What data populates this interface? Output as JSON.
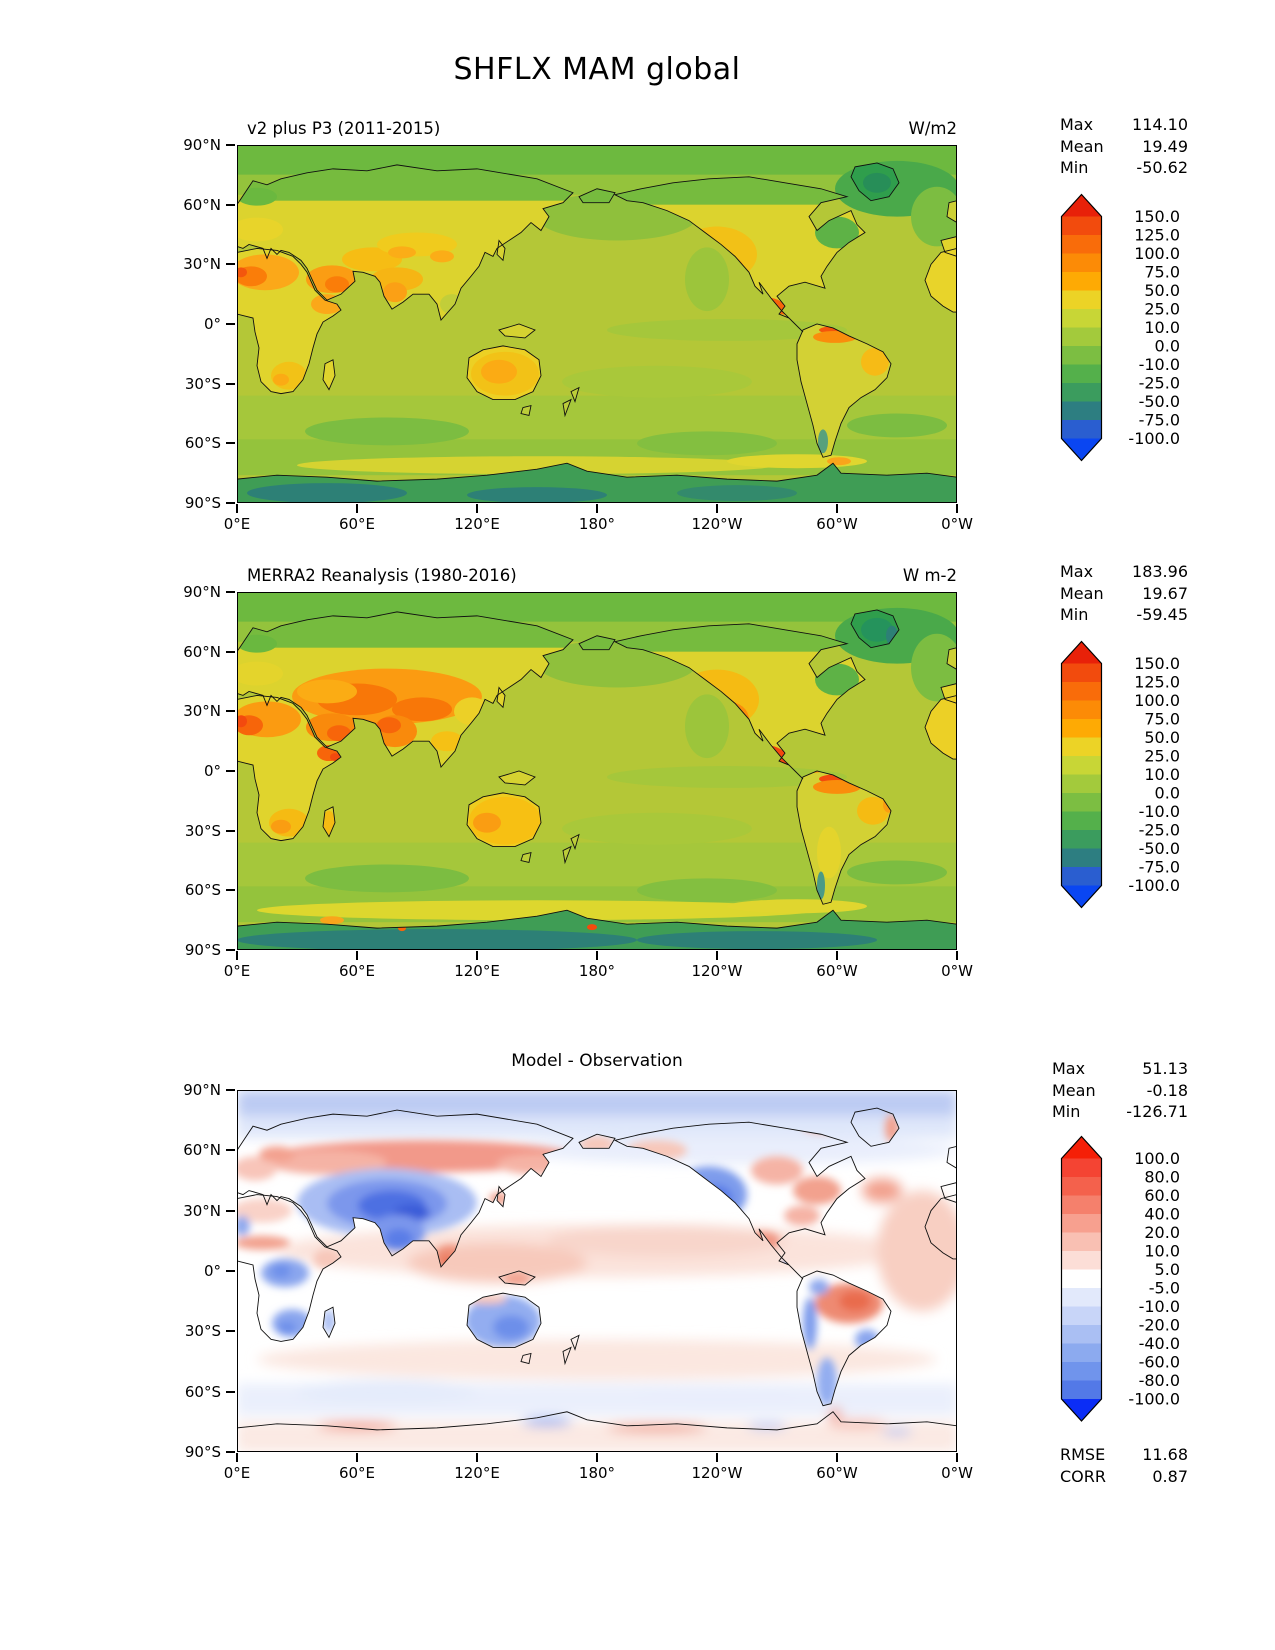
{
  "title": "SHFLX MAM global",
  "panels": [
    {
      "id": "model",
      "title": "v2 plus P3 (2011-2015)",
      "units": "W/m2",
      "stats": [
        {
          "label": "Max",
          "value": "114.10"
        },
        {
          "label": "Mean",
          "value": "19.49"
        },
        {
          "label": "Min",
          "value": "-50.62"
        }
      ],
      "yticks": [
        "90°N",
        "60°N",
        "30°N",
        "0°",
        "30°S",
        "60°S",
        "90°S"
      ],
      "xticks": [
        "0°E",
        "60°E",
        "120°E",
        "180°",
        "120°W",
        "60°W",
        "0°W"
      ],
      "colorbar": {
        "ticks": [
          "150.0",
          "125.0",
          "100.0",
          "75.0",
          "50.0",
          "25.0",
          "10.0",
          "0.0",
          "-10.0",
          "-25.0",
          "-50.0",
          "-75.0",
          "-100.0"
        ],
        "segments": [
          "#f24b0d",
          "#f96c0a",
          "#fc8b06",
          "#feaa04",
          "#ecd326",
          "#c8d636",
          "#a3ca3c",
          "#7cbe42",
          "#54b04b",
          "#3b9c5e",
          "#2d7e81",
          "#2a5ed0"
        ],
        "arrow_top": "#e82109",
        "arrow_bottom": "#0a46f2"
      }
    },
    {
      "id": "observation",
      "title": "MERRA2 Reanalysis (1980-2016)",
      "units": "W m-2",
      "stats": [
        {
          "label": "Max",
          "value": "183.96"
        },
        {
          "label": "Mean",
          "value": "19.67"
        },
        {
          "label": "Min",
          "value": "-59.45"
        }
      ],
      "yticks": [
        "90°N",
        "60°N",
        "30°N",
        "0°",
        "30°S",
        "60°S",
        "90°S"
      ],
      "xticks": [
        "0°E",
        "60°E",
        "120°E",
        "180°",
        "120°W",
        "60°W",
        "0°W"
      ],
      "colorbar": {
        "ticks": [
          "150.0",
          "125.0",
          "100.0",
          "75.0",
          "50.0",
          "25.0",
          "10.0",
          "0.0",
          "-10.0",
          "-25.0",
          "-50.0",
          "-75.0",
          "-100.0"
        ],
        "segments": [
          "#f24b0d",
          "#f96c0a",
          "#fc8b06",
          "#feaa04",
          "#ecd326",
          "#c8d636",
          "#a3ca3c",
          "#7cbe42",
          "#54b04b",
          "#3b9c5e",
          "#2d7e81",
          "#2a5ed0"
        ],
        "arrow_top": "#e82109",
        "arrow_bottom": "#0a46f2"
      }
    },
    {
      "id": "difference",
      "title": "Model - Observation",
      "units": "",
      "stats": [
        {
          "label": "Max",
          "value": "51.13"
        },
        {
          "label": "Mean",
          "value": "-0.18"
        },
        {
          "label": "Min",
          "value": "-126.71"
        }
      ],
      "extra_stats": [
        {
          "label": "RMSE",
          "value": "11.68"
        },
        {
          "label": "CORR",
          "value": "0.87"
        }
      ],
      "yticks": [
        "90°N",
        "60°N",
        "30°N",
        "0°",
        "30°S",
        "60°S",
        "90°S"
      ],
      "xticks": [
        "0°E",
        "60°E",
        "120°E",
        "180°",
        "120°W",
        "60°W",
        "0°W"
      ],
      "colorbar": {
        "ticks": [
          "100.0",
          "80.0",
          "60.0",
          "40.0",
          "20.0",
          "10.0",
          "5.0",
          "-5.0",
          "-10.0",
          "-20.0",
          "-40.0",
          "-60.0",
          "-80.0",
          "-100.0"
        ],
        "segments": [
          "#f44433",
          "#f4614c",
          "#f5806c",
          "#f7a08f",
          "#f9c0b3",
          "#fcded7",
          "#ffffff",
          "#e2e9fb",
          "#c8d5f8",
          "#aabff3",
          "#8caaef",
          "#7094ec",
          "#5379e7"
        ],
        "arrow_top": "#f51f07",
        "arrow_bottom": "#0b2df6"
      }
    }
  ],
  "chart_data": [
    {
      "type": "heatmap",
      "panel": "model",
      "variable": "SHFLX",
      "season": "MAM",
      "region": "global",
      "title": "v2 plus P3 (2011-2015)",
      "units": "W/m2",
      "x": {
        "label": "longitude",
        "ticks": [
          "0°E",
          "60°E",
          "120°E",
          "180°",
          "120°W",
          "60°W",
          "0°W"
        ]
      },
      "y": {
        "label": "latitude",
        "ticks": [
          "90°N",
          "60°N",
          "30°N",
          "0°",
          "30°S",
          "60°S",
          "90°S"
        ]
      },
      "levels": [
        -100,
        -75,
        -50,
        -25,
        -10,
        0,
        10,
        25,
        50,
        75,
        100,
        125,
        150
      ],
      "stats": {
        "max": 114.1,
        "mean": 19.49,
        "min": -50.62
      },
      "colormap": "blue-teal-green-yellow-orange-red (extend arrows both ends)"
    },
    {
      "type": "heatmap",
      "panel": "observation",
      "variable": "SHFLX",
      "season": "MAM",
      "region": "global",
      "title": "MERRA2 Reanalysis (1980-2016)",
      "units": "W m-2",
      "x": {
        "label": "longitude",
        "ticks": [
          "0°E",
          "60°E",
          "120°E",
          "180°",
          "120°W",
          "60°W",
          "0°W"
        ]
      },
      "y": {
        "label": "latitude",
        "ticks": [
          "90°N",
          "60°N",
          "30°N",
          "0°",
          "30°S",
          "60°S",
          "90°S"
        ]
      },
      "levels": [
        -100,
        -75,
        -50,
        -25,
        -10,
        0,
        10,
        25,
        50,
        75,
        100,
        125,
        150
      ],
      "stats": {
        "max": 183.96,
        "mean": 19.67,
        "min": -59.45
      },
      "colormap": "blue-teal-green-yellow-orange-red (extend arrows both ends)"
    },
    {
      "type": "heatmap",
      "panel": "difference",
      "variable": "SHFLX model minus observation",
      "season": "MAM",
      "region": "global",
      "title": "Model - Observation",
      "x": {
        "label": "longitude",
        "ticks": [
          "0°E",
          "60°E",
          "120°E",
          "180°",
          "120°W",
          "60°W",
          "0°W"
        ]
      },
      "y": {
        "label": "latitude",
        "ticks": [
          "90°N",
          "60°N",
          "30°N",
          "0°",
          "30°S",
          "60°S",
          "90°S"
        ]
      },
      "levels": [
        -100,
        -80,
        -60,
        -40,
        -20,
        -10,
        -5,
        5,
        10,
        20,
        40,
        60,
        80,
        100
      ],
      "stats": {
        "max": 51.13,
        "mean": -0.18,
        "min": -126.71,
        "rmse": 11.68,
        "corr": 0.87
      },
      "colormap": "blue-white-red diverging (extend arrows both ends)"
    }
  ]
}
